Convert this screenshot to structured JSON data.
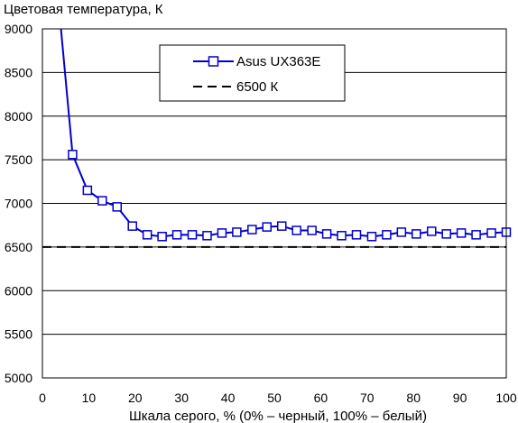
{
  "chart_data": {
    "type": "line",
    "title": "",
    "ylabel": "Цветовая температура, К",
    "xlabel": "Шкала серого, % (0% – черный, 100% – белый)",
    "xlim": [
      0,
      100
    ],
    "ylim": [
      5000,
      9000
    ],
    "xticks": [
      0,
      10,
      20,
      30,
      40,
      50,
      60,
      70,
      80,
      90,
      100
    ],
    "yticks": [
      5000,
      5500,
      6000,
      6500,
      7000,
      7500,
      8000,
      8500,
      9000
    ],
    "grid": "horizontal",
    "legend_placement": "top-center",
    "series": [
      {
        "name": "Asus UX363E",
        "color": "#0000cc",
        "marker": "square",
        "x": [
          4,
          6.5,
          9.7,
          12.9,
          16.1,
          19.4,
          22.6,
          25.8,
          29.0,
          32.3,
          35.5,
          38.7,
          41.9,
          45.2,
          48.4,
          51.6,
          54.8,
          58.1,
          61.3,
          64.5,
          67.7,
          71.0,
          74.2,
          77.4,
          80.6,
          83.9,
          87.1,
          90.3,
          93.5,
          96.8,
          100
        ],
        "values": [
          9000,
          7560,
          7150,
          7030,
          6960,
          6740,
          6640,
          6620,
          6640,
          6640,
          6630,
          6660,
          6670,
          6700,
          6730,
          6740,
          6690,
          6690,
          6650,
          6630,
          6640,
          6620,
          6640,
          6670,
          6650,
          6680,
          6650,
          6660,
          6640,
          6660,
          6670
        ],
        "markers_from_index": 1
      },
      {
        "name": "6500 К",
        "color": "#000000",
        "style": "dashed",
        "x": [
          0,
          100
        ],
        "values": [
          6500,
          6500
        ]
      }
    ]
  }
}
